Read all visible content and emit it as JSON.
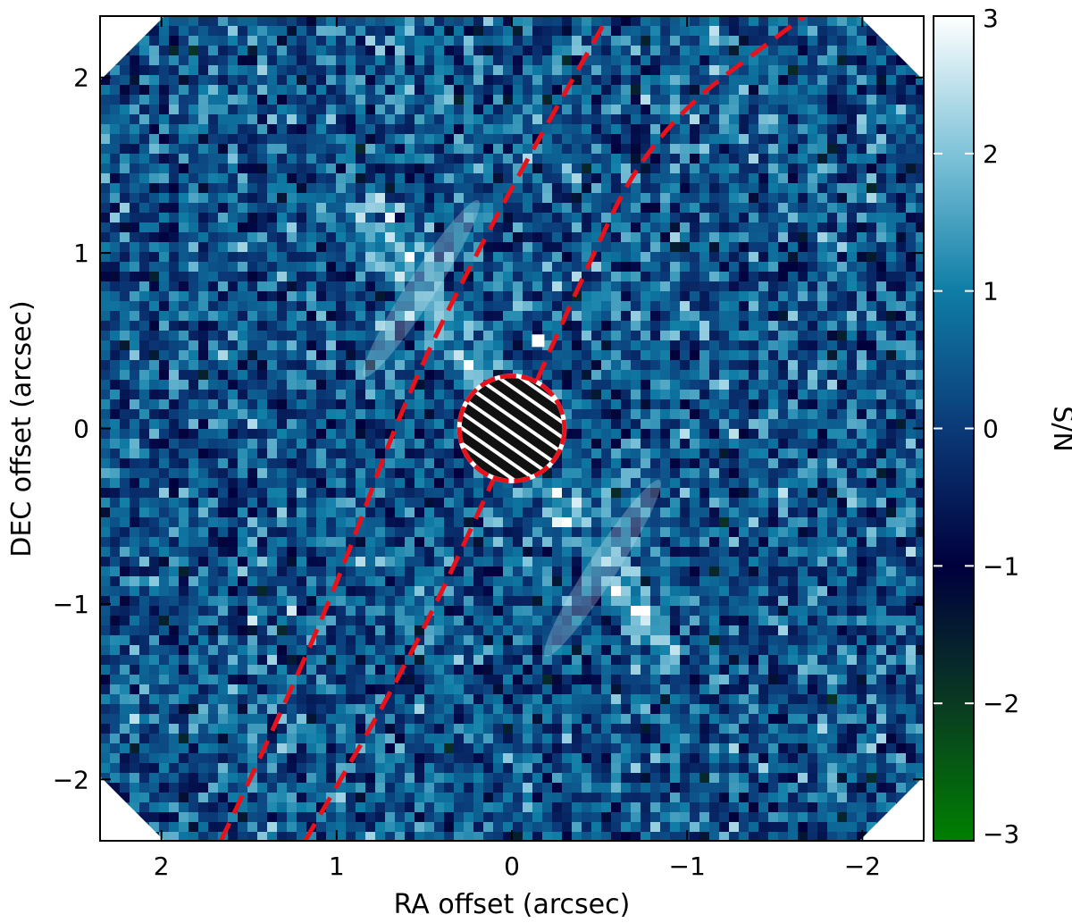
{
  "chart_data": {
    "type": "heatmap",
    "xlabel": "RA offset (arcsec)",
    "ylabel": "DEC offset (arcsec)",
    "xlim": [
      2.35,
      -2.35
    ],
    "ylim": [
      -2.35,
      2.35
    ],
    "x_ticks": [
      2,
      1,
      0,
      -1,
      -2
    ],
    "x_tick_labels": [
      "2",
      "1",
      "0",
      "−1",
      "−2"
    ],
    "y_ticks": [
      2,
      1,
      0,
      -1,
      -2
    ],
    "y_tick_labels": [
      "2",
      "1",
      "0",
      "−1",
      "−2"
    ],
    "colorbar": {
      "label": "S/N",
      "range": [
        -3,
        3
      ],
      "ticks": [
        3,
        2,
        1,
        0,
        -1,
        -2,
        -3
      ],
      "tick_labels": [
        "3",
        "2",
        "1",
        "0",
        "−1",
        "−2",
        "−3"
      ],
      "colormap": [
        "#008000",
        "#0a3a22",
        "#00003d",
        "#0b3a78",
        "#0f7da6",
        "#7fc3d9",
        "#ffffff"
      ]
    },
    "disk_band": {
      "description": "bright elongated disk emission",
      "position_angle_deg": 33,
      "extent_arcsec": [
        -1.55,
        1.55
      ]
    },
    "mask": {
      "center": [
        0,
        0
      ],
      "radius_arcsec": 0.3
    },
    "ellipse_overlays": [
      {
        "points": [
          [
            1.66,
            -2.35
          ],
          [
            1.4,
            -1.8
          ],
          [
            1.0,
            -0.9
          ],
          [
            0.6,
            0.2
          ],
          [
            0.1,
            1.2
          ],
          [
            -0.55,
            2.35
          ]
        ]
      },
      {
        "points": [
          [
            1.18,
            -2.35
          ],
          [
            0.6,
            -1.35
          ],
          [
            0.15,
            -0.4
          ],
          [
            -0.35,
            0.75
          ],
          [
            -0.8,
            1.7
          ],
          [
            -1.67,
            2.35
          ]
        ]
      }
    ],
    "point_marker": {
      "x": -0.15,
      "y": 0.5
    },
    "border_clipping": "octagonal field of view with white corner triangles",
    "overlay_color": "#e8121c"
  }
}
